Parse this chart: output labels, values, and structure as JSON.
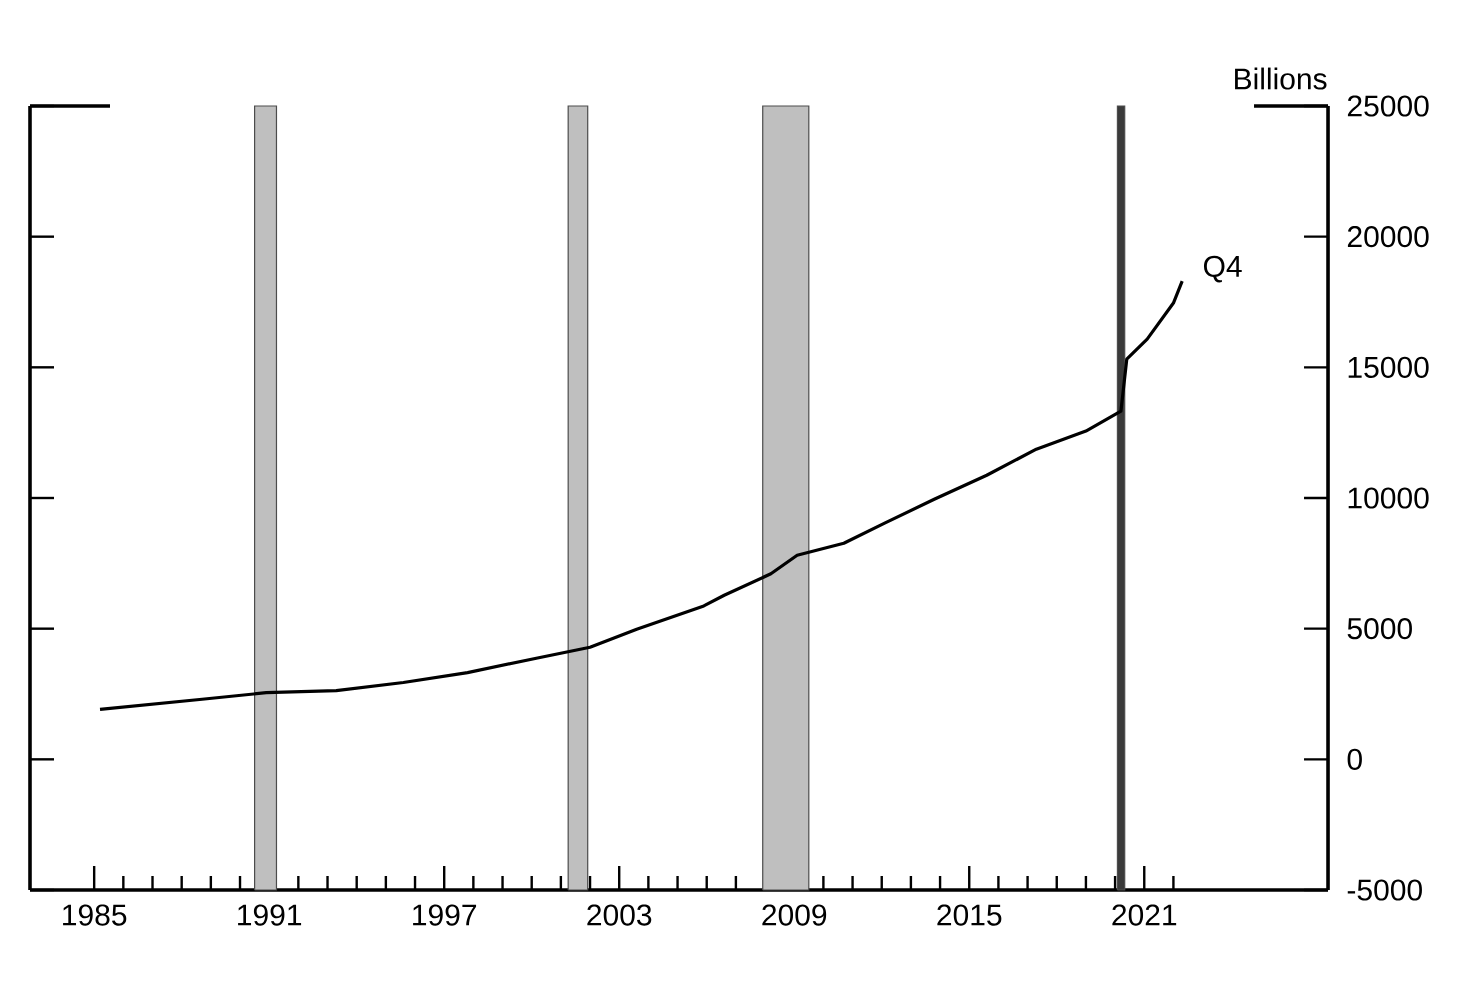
{
  "chart_data": {
    "type": "line",
    "ylabel": "Billions",
    "x": [
      1985.2,
      1988.7,
      1990.9,
      1993.3,
      1995.6,
      1997.8,
      2000.2,
      2002.0,
      2003.6,
      2005.9,
      2006.6,
      2008.2,
      2009.1,
      2010.7,
      2012.1,
      2013.8,
      2015.6,
      2017.3,
      2019.0,
      2020.2,
      2020.4,
      2021.1,
      2022.0,
      2022.3
    ],
    "series": [
      {
        "color": "#000000",
        "values": [
          1910,
          2300,
          2550,
          2630,
          2940,
          3320,
          3880,
          4290,
          4980,
          5870,
          6280,
          7100,
          7810,
          8270,
          9040,
          9950,
          10870,
          11870,
          12560,
          13320,
          15310,
          16080,
          17460,
          18300
        ]
      }
    ],
    "annotations": [
      {
        "text": "Q4",
        "x": 2022.3,
        "y": 18300
      }
    ],
    "xlim": [
      1982.8,
      2027.3
    ],
    "ylim": [
      -5000,
      25000
    ],
    "xticks": [
      1985,
      {
        "value": 1986,
        "label": null
      },
      {
        "value": 1987,
        "label": null
      },
      {
        "value": 1988,
        "label": null
      },
      {
        "value": 1989,
        "label": null
      },
      {
        "value": 1990,
        "label": null
      },
      1991,
      {
        "value": 1992,
        "label": null
      },
      {
        "value": 1993,
        "label": null
      },
      {
        "value": 1994,
        "label": null
      },
      {
        "value": 1995,
        "label": null
      },
      {
        "value": 1996,
        "label": null
      },
      1997,
      {
        "value": 1998,
        "label": null
      },
      {
        "value": 1999,
        "label": null
      },
      {
        "value": 2000,
        "label": null
      },
      {
        "value": 2001,
        "label": null
      },
      {
        "value": 2002,
        "label": null
      },
      2003,
      {
        "value": 2004,
        "label": null
      },
      {
        "value": 2005,
        "label": null
      },
      {
        "value": 2006,
        "label": null
      },
      {
        "value": 2007,
        "label": null
      },
      {
        "value": 2008,
        "label": null
      },
      2009,
      {
        "value": 2010,
        "label": null
      },
      {
        "value": 2011,
        "label": null
      },
      {
        "value": 2012,
        "label": null
      },
      {
        "value": 2013,
        "label": null
      },
      {
        "value": 2014,
        "label": null
      },
      2015,
      {
        "value": 2016,
        "label": null
      },
      {
        "value": 2017,
        "label": null
      },
      {
        "value": 2018,
        "label": null
      },
      {
        "value": 2019,
        "label": null
      },
      {
        "value": 2020,
        "label": null
      },
      2021,
      {
        "value": 2022,
        "label": null
      }
    ],
    "yticks": [
      -5000,
      0,
      5000,
      10000,
      15000,
      20000,
      25000
    ],
    "bands": [
      {
        "axis": "x",
        "from": 1990.5,
        "to": 1991.25,
        "color": "#bfbfbf"
      },
      {
        "axis": "x",
        "from": 2001.25,
        "to": 2001.92,
        "color": "#bfbfbf"
      },
      {
        "axis": "x",
        "from": 2007.92,
        "to": 2009.5,
        "color": "#bfbfbf"
      },
      {
        "axis": "x",
        "from": 2020.08,
        "to": 2020.33,
        "color": "#3a3a3a"
      }
    ]
  }
}
